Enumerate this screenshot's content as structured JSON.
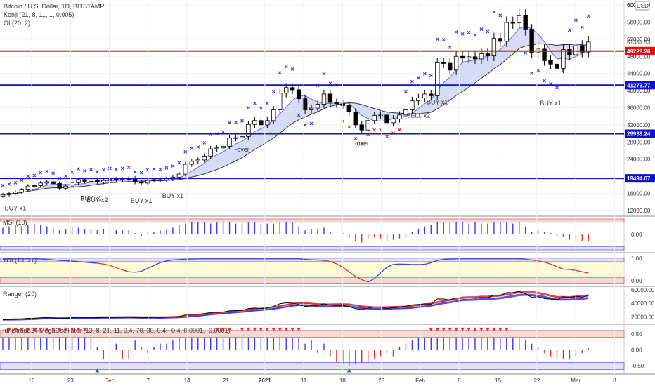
{
  "header": {
    "title": "Bitcoin / U.S. Dollar, 1D, BITSTAMP",
    "ind1": "Kenji (21, 8, 11, 1, 0.005)",
    "ind2": "OI (20, 2)",
    "currency": "USD"
  },
  "colors": {
    "up": "#ffffff",
    "down": "#000000",
    "wick": "#000000",
    "psar": "#3b3bf0",
    "sar_exit": "#e03030",
    "blue_level": "#1010d0",
    "red_level": "#e01010",
    "band_fill": "#c8ccf0",
    "bar_blue": "#3b3bf0",
    "bar_red": "#e03030"
  },
  "chart_data": [
    {
      "type": "candlestick",
      "title": "Bitcoin / U.S. Dollar, 1D, BITSTAMP",
      "y_ticks": [
        12000,
        16000,
        20000,
        24000,
        28000,
        32000,
        36000,
        40000,
        44000,
        48000,
        52000,
        56000,
        60000
      ],
      "ylim": [
        11000,
        60500
      ],
      "x_ticks": [
        "16",
        "23",
        "Dec",
        "7",
        "14",
        "21",
        "2021",
        "11",
        "18",
        "25",
        "Feb",
        "8",
        "15",
        "22",
        "Mar",
        "8"
      ],
      "last_price": 51351.53,
      "price_labels": [
        {
          "value": 60000,
          "text": "60000.00"
        },
        {
          "value": 51351.53,
          "text": "51351.53"
        },
        {
          "value": 49228.26,
          "text": "49228.26"
        },
        {
          "value": 41273.77,
          "text": "41273.77"
        },
        {
          "value": 29933.24,
          "text": "29933.24"
        },
        {
          "value": 19494.67,
          "text": "19494.67"
        }
      ],
      "levels": [
        {
          "value": 49228.26,
          "color": "red"
        },
        {
          "value": 41273.77,
          "color": "blue"
        },
        {
          "value": 29933.24,
          "color": "blue"
        },
        {
          "value": 19494.67,
          "color": "blue"
        }
      ],
      "closes": [
        15700,
        16000,
        16300,
        16800,
        17700,
        17800,
        18400,
        18700,
        18300,
        17200,
        17700,
        18500,
        19200,
        18800,
        19100,
        18600,
        19000,
        19300,
        19100,
        19300,
        19500,
        18600,
        18400,
        19000,
        19200,
        19100,
        19400,
        19800,
        20500,
        22800,
        23500,
        23800,
        24700,
        26400,
        26600,
        27000,
        28900,
        29000,
        29300,
        32100,
        33000,
        32000,
        33000,
        35500,
        39400,
        40700,
        40200,
        38100,
        35500,
        35900,
        36800,
        39200,
        37200,
        36900,
        36500,
        35000,
        32000,
        30800,
        33000,
        34200,
        34300,
        32500,
        33400,
        34300,
        35500,
        37600,
        38300,
        39200,
        38800,
        46500,
        46400,
        44800,
        48000,
        47600,
        47900,
        47400,
        48600,
        48100,
        52200,
        51500,
        55900,
        55800,
        57500,
        54200,
        48900,
        49700,
        47000,
        46200,
        45200,
        49600,
        48400,
        50500,
        49000,
        51351
      ],
      "annotations": [
        {
          "i": 2,
          "text": "BUY x1",
          "color": "#5a5ad0"
        },
        {
          "i": 14,
          "text": "BUY x1",
          "color": "#5a5ad0"
        },
        {
          "i": 15,
          "text": "BUY x2",
          "color": "#5a5ad0"
        },
        {
          "i": 22,
          "text": "BUY x1",
          "color": "#5a5ad0"
        },
        {
          "i": 27,
          "text": "BUY x1",
          "color": "#5a5ad0"
        },
        {
          "i": 38,
          "text": "-over",
          "color": "#e04040"
        },
        {
          "i": 57,
          "text": "-over",
          "color": "#e04040"
        },
        {
          "i": 66,
          "text": "SELL x2",
          "color": "#e04040"
        },
        {
          "i": 69,
          "text": "BUY x1",
          "color": "#5a5ad0"
        },
        {
          "i": 87,
          "text": "BUY x1",
          "color": "#5a5ad0"
        }
      ]
    },
    {
      "type": "bar",
      "title": "MSI (10)",
      "y_ticks": [
        0.0
      ],
      "ylim": [
        -1.2,
        1.2
      ],
      "values": [
        0.5,
        0.6,
        0.7,
        0.6,
        0.7,
        0.8,
        0.7,
        0.6,
        0.5,
        0.3,
        0.4,
        0.5,
        0.5,
        0.4,
        0.4,
        0.3,
        0.4,
        0.4,
        0.3,
        0.3,
        0.3,
        0.1,
        -0.1,
        0.1,
        0.2,
        0.3,
        0.3,
        0.5,
        0.7,
        0.8,
        0.9,
        0.9,
        0.9,
        0.8,
        0.9,
        0.9,
        0.9,
        0.8,
        0.8,
        0.9,
        0.9,
        0.8,
        0.8,
        0.8,
        0.9,
        0.9,
        0.9,
        0.6,
        0.3,
        0.4,
        0.4,
        0.5,
        0.2,
        0.0,
        0.1,
        -0.2,
        -0.5,
        -0.6,
        -0.3,
        -0.2,
        -0.3,
        -0.5,
        -0.4,
        -0.3,
        -0.2,
        0.2,
        0.4,
        0.6,
        0.7,
        0.9,
        0.9,
        0.9,
        0.9,
        0.9,
        0.8,
        0.9,
        0.8,
        0.8,
        0.9,
        0.9,
        0.9,
        0.8,
        0.9,
        0.6,
        0.2,
        0.3,
        0.2,
        0.1,
        -0.1,
        -0.2,
        -0.4,
        -0.4,
        -0.5,
        -0.5
      ]
    },
    {
      "type": "line",
      "title": "TDI (13, 21)",
      "y_ticks": [
        1.0,
        0.0
      ],
      "ylim": [
        -0.15,
        1.15
      ],
      "values": [
        0.95,
        0.96,
        0.97,
        0.97,
        0.97,
        0.97,
        0.96,
        0.95,
        0.93,
        0.9,
        0.89,
        0.87,
        0.85,
        0.82,
        0.8,
        0.78,
        0.74,
        0.68,
        0.58,
        0.48,
        0.4,
        0.38,
        0.42,
        0.55,
        0.68,
        0.8,
        0.88,
        0.92,
        0.94,
        0.95,
        0.96,
        0.97,
        0.97,
        0.97,
        0.97,
        0.97,
        0.97,
        0.97,
        0.97,
        0.97,
        0.97,
        0.97,
        0.97,
        0.97,
        0.97,
        0.97,
        0.97,
        0.97,
        0.95,
        0.93,
        0.92,
        0.9,
        0.85,
        0.75,
        0.6,
        0.4,
        0.2,
        0.05,
        -0.05,
        0.1,
        0.35,
        0.6,
        0.72,
        0.74,
        0.73,
        0.72,
        0.72,
        0.73,
        0.8,
        0.9,
        0.95,
        0.96,
        0.97,
        0.97,
        0.97,
        0.97,
        0.97,
        0.97,
        0.97,
        0.97,
        0.97,
        0.97,
        0.97,
        0.96,
        0.92,
        0.88,
        0.82,
        0.74,
        0.62,
        0.52,
        0.5,
        0.46,
        0.4,
        0.34
      ]
    },
    {
      "type": "line",
      "title": "Ranger (20)",
      "y_ticks": [
        60000,
        40000,
        20000
      ],
      "ylim": [
        12000,
        62000
      ]
    },
    {
      "type": "bar",
      "title": "Idnistrade24 MegaOscillator (13, 8, 21, 11, 0.4, 70, 30, 0.4, -0.4, 0.0001, -0.0001)",
      "y_ticks": [
        0.5,
        0.0,
        -0.5
      ],
      "ylim": [
        -0.7,
        0.75
      ],
      "values": [
        0.4,
        0.4,
        0.4,
        0.4,
        0.4,
        0.4,
        0.4,
        0.4,
        0.4,
        0.4,
        0.4,
        0.4,
        0.4,
        0.4,
        0.4,
        0.1,
        -0.3,
        -0.2,
        0.2,
        -0.3,
        -0.3,
        0.3,
        0.1,
        -0.1,
        0.1,
        0.2,
        0.2,
        0.3,
        0.4,
        0.4,
        0.4,
        0.4,
        0.4,
        0.4,
        0.4,
        0.4,
        0.4,
        0.4,
        0.4,
        0.4,
        0.4,
        0.4,
        0.4,
        0.4,
        0.4,
        0.4,
        0.4,
        0.4,
        0.2,
        0.3,
        -0.1,
        0.2,
        -0.2,
        -0.4,
        -0.45,
        -0.5,
        -0.45,
        -0.4,
        -0.4,
        -0.3,
        -0.2,
        -0.1,
        -0.2,
        0.1,
        0.2,
        0.3,
        0.4,
        0.4,
        0.4,
        0.4,
        0.4,
        0.4,
        0.4,
        0.4,
        0.4,
        0.4,
        0.4,
        0.4,
        0.4,
        0.4,
        0.4,
        0.4,
        0.4,
        0.3,
        0.2,
        0.1,
        -0.1,
        -0.2,
        -0.3,
        -0.3,
        -0.3,
        -0.2,
        -0.1,
        0.05
      ],
      "sell_markers": [
        1,
        2,
        3,
        4,
        5,
        6,
        7,
        8,
        9,
        10,
        11,
        12,
        13,
        34,
        35,
        36,
        38,
        39,
        40,
        41,
        42,
        43,
        44,
        45,
        46,
        47,
        68,
        69,
        70,
        71,
        72,
        73,
        74,
        75,
        76,
        77,
        78,
        79,
        80
      ],
      "buy_markers": [
        15,
        55
      ]
    }
  ]
}
